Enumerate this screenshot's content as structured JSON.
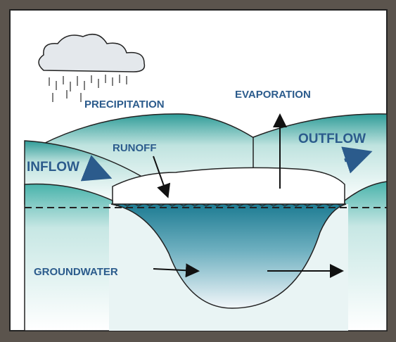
{
  "labels": {
    "precipitation": "PRECIPITATION",
    "evaporation": "EVAPORATION",
    "runoff": "RUNOFF",
    "outflow": "OUTFLOW",
    "inflow": "INFLOW",
    "groundwater": "GROUNDWATER"
  }
}
